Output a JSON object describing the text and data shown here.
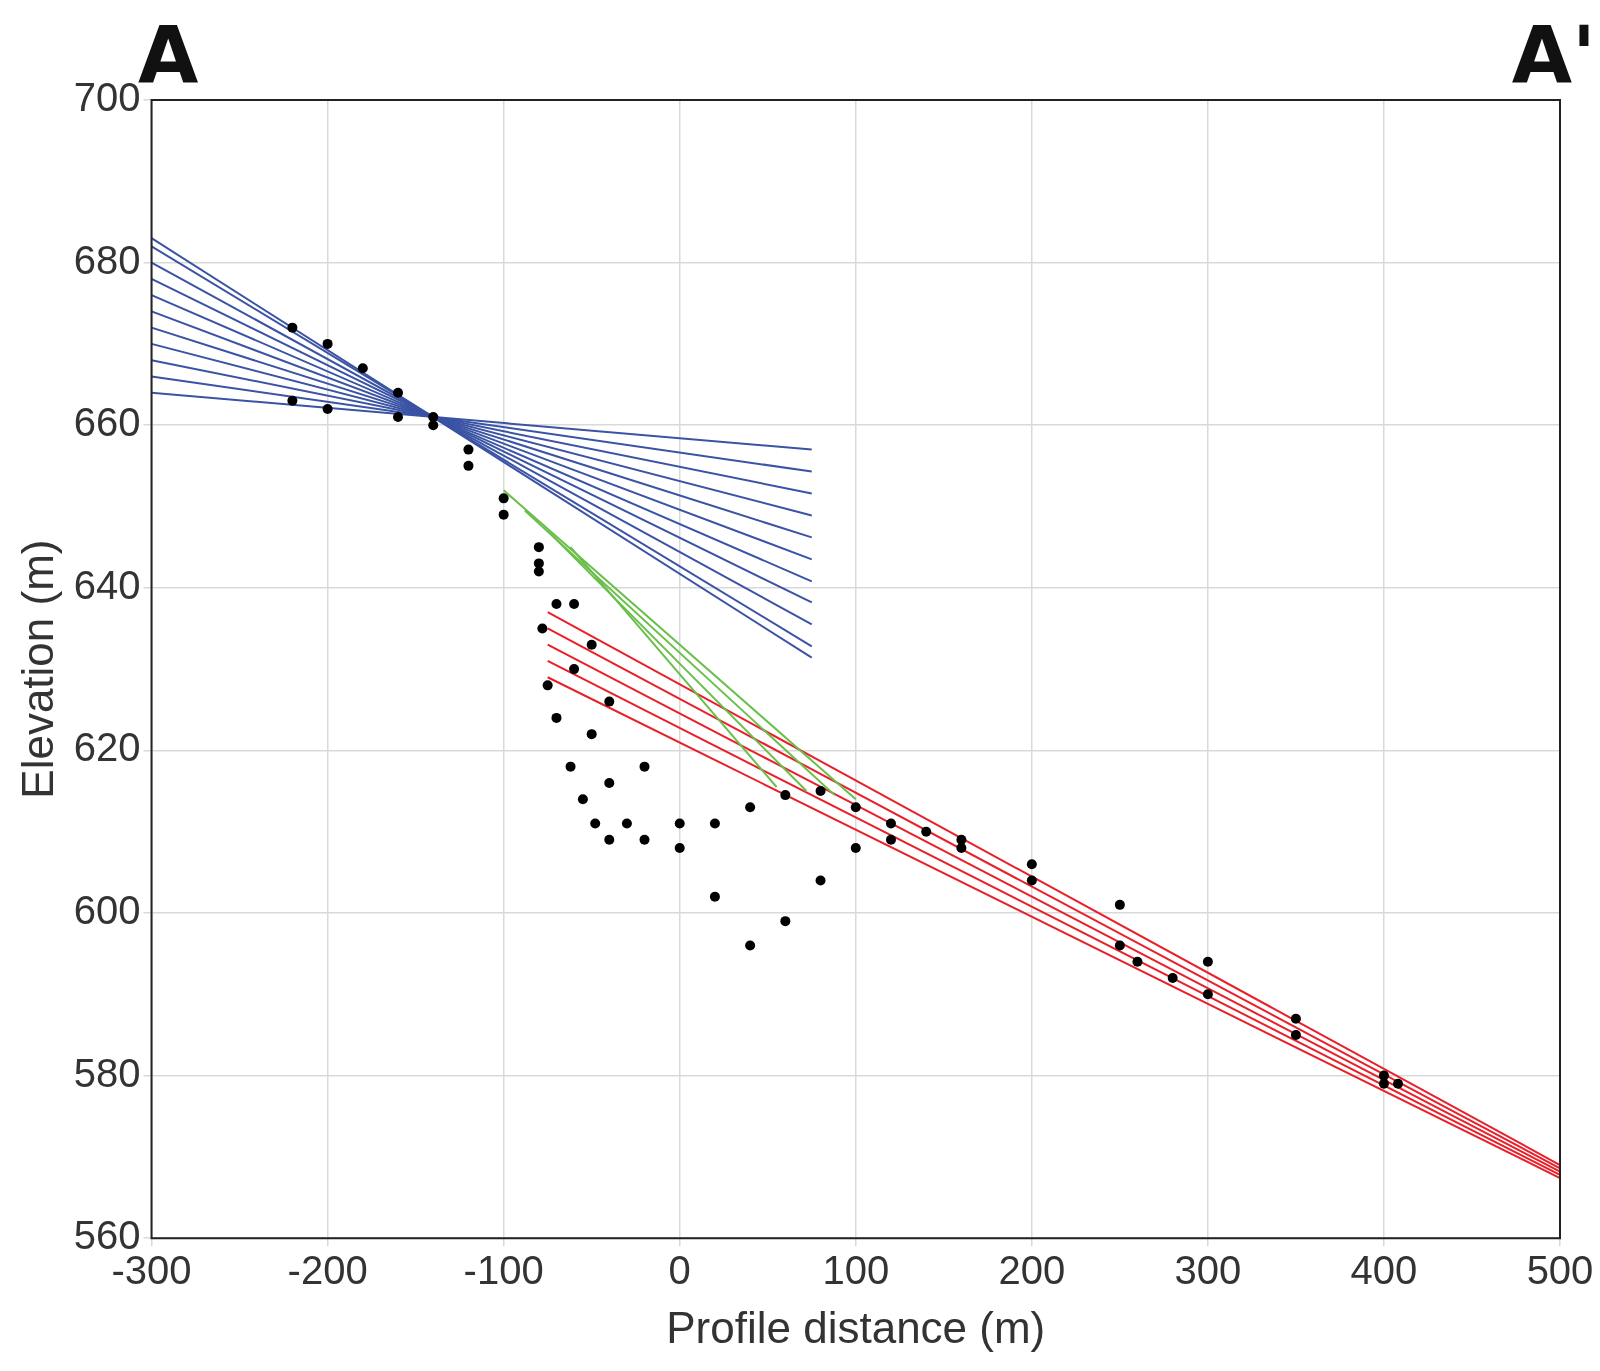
{
  "chart_data": {
    "type": "line",
    "xlabel": "Profile distance (m)",
    "ylabel": "Elevation (m)",
    "annotations": [
      "A",
      "A'"
    ],
    "xlim": [
      -300,
      500
    ],
    "xticks": [
      -300,
      -200,
      -100,
      0,
      100,
      200,
      300,
      400,
      500
    ],
    "ylim": [
      560,
      700
    ],
    "yticks": [
      560,
      580,
      600,
      620,
      640,
      660,
      680,
      700
    ],
    "grid": true,
    "legend": false,
    "marker": "none",
    "line_style": "solid",
    "series": [
      {
        "type": "scatter",
        "marker": "circle",
        "color": "#000000",
        "x": [
          -220,
          -200,
          -180,
          -160,
          -140,
          -120,
          -100,
          -80,
          -60,
          -50,
          -40,
          -20,
          0,
          20,
          40,
          60,
          80,
          100,
          120,
          140,
          160,
          200,
          250,
          300,
          350,
          400,
          408,
          -220,
          -200,
          -160,
          -140,
          -120,
          -100,
          -80,
          -70,
          -60,
          -50,
          -40,
          -30,
          -20,
          0,
          20,
          40,
          60,
          80,
          100,
          120,
          160,
          200,
          250,
          260,
          280,
          300,
          350,
          400,
          -80,
          -78,
          -75,
          -70,
          -62,
          -55,
          -48,
          -40
        ],
        "values": [
          672,
          670,
          667,
          664,
          661,
          657,
          651,
          645,
          638,
          633,
          626,
          618,
          611,
          611,
          613,
          614.5,
          615,
          613,
          611,
          610,
          609,
          606,
          601,
          594,
          587,
          580,
          579,
          663,
          662,
          661,
          660,
          655,
          649,
          643,
          638,
          630,
          622,
          616,
          611,
          609,
          608,
          602,
          596,
          599,
          604,
          608,
          609,
          608,
          604,
          596,
          594,
          592,
          590,
          585,
          579,
          642,
          635,
          628,
          624,
          618,
          614,
          611,
          609
        ]
      },
      {
        "color": "#3a53a4",
        "x": [
          -300,
          75
        ],
        "values": [
          664,
          657.0
        ]
      },
      {
        "type": "line",
        "color": "#3a53a4",
        "x": [
          -300,
          75
        ],
        "values": [
          666,
          654.3
        ]
      },
      {
        "type": "line",
        "color": "#3a53a4",
        "x": [
          -300,
          75
        ],
        "values": [
          668,
          651.6
        ]
      },
      {
        "type": "line",
        "color": "#3a53a4",
        "x": [
          -300,
          75
        ],
        "values": [
          670,
          648.9
        ]
      },
      {
        "type": "line",
        "color": "#3a53a4",
        "x": [
          -300,
          75
        ],
        "values": [
          672,
          646.2
        ]
      },
      {
        "type": "line",
        "color": "#3a53a4",
        "x": [
          -300,
          75
        ],
        "values": [
          674,
          643.5
        ]
      },
      {
        "type": "line",
        "color": "#3a53a4",
        "x": [
          -300,
          75
        ],
        "values": [
          676,
          640.8
        ]
      },
      {
        "type": "line",
        "color": "#3a53a4",
        "x": [
          -300,
          75
        ],
        "values": [
          678,
          638.2
        ]
      },
      {
        "type": "line",
        "color": "#3a53a4",
        "x": [
          -300,
          75
        ],
        "values": [
          680,
          635.5
        ]
      },
      {
        "type": "line",
        "color": "#3a53a4",
        "x": [
          -300,
          75
        ],
        "values": [
          682,
          632.8
        ]
      },
      {
        "type": "line",
        "color": "#3a53a4",
        "x": [
          -300,
          75
        ],
        "values": [
          683,
          631.4
        ]
      },
      {
        "type": "line",
        "color": "#6abf4b",
        "x": [
          -100,
          100
        ],
        "values": [
          652,
          614
        ]
      },
      {
        "type": "line",
        "color": "#6abf4b",
        "x": [
          -88,
          88
        ],
        "values": [
          649.5,
          614.5
        ]
      },
      {
        "type": "line",
        "color": "#6abf4b",
        "x": [
          -75,
          72
        ],
        "values": [
          647,
          615
        ]
      },
      {
        "type": "line",
        "color": "#6abf4b",
        "x": [
          -62,
          55
        ],
        "values": [
          645,
          615.5
        ]
      },
      {
        "type": "line",
        "color": "#e8202a",
        "x": [
          -75,
          500
        ],
        "values": [
          637,
          569
        ]
      },
      {
        "type": "line",
        "color": "#e8202a",
        "x": [
          -75,
          500
        ],
        "values": [
          635,
          568.6
        ]
      },
      {
        "type": "line",
        "color": "#e8202a",
        "x": [
          -75,
          500
        ],
        "values": [
          633,
          568.2
        ]
      },
      {
        "type": "line",
        "color": "#e8202a",
        "x": [
          -75,
          500
        ],
        "values": [
          631,
          567.8
        ]
      },
      {
        "type": "line",
        "color": "#e8202a",
        "x": [
          -75,
          500
        ],
        "values": [
          629,
          567.4
        ]
      }
    ]
  }
}
